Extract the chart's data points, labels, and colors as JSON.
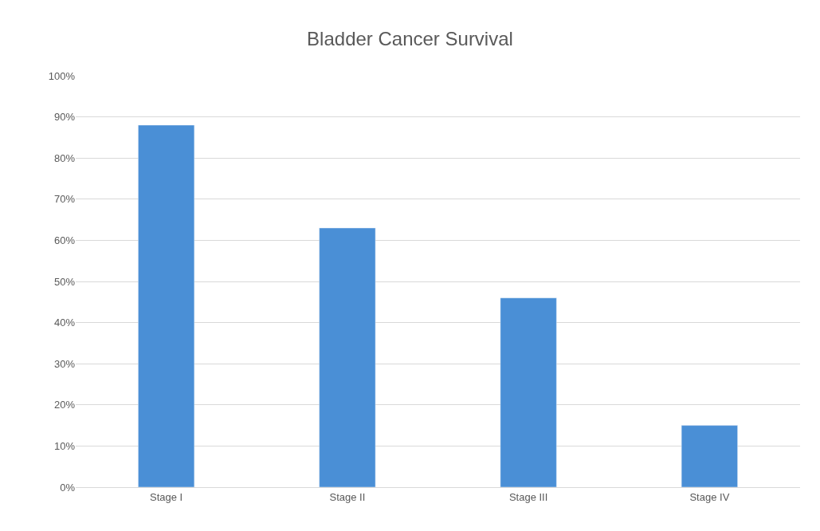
{
  "chart_data": {
    "type": "bar",
    "title": "Bladder Cancer Survival",
    "categories": [
      "Stage I",
      "Stage II",
      "Stage III",
      "Stage IV"
    ],
    "values": [
      88,
      63,
      46,
      15
    ],
    "color": "#4a8fd6",
    "ylim": [
      0,
      100
    ],
    "yticks": [
      {
        "value": 0,
        "label": "0%"
      },
      {
        "value": 10,
        "label": "10%"
      },
      {
        "value": 20,
        "label": "20%"
      },
      {
        "value": 30,
        "label": "30%"
      },
      {
        "value": 40,
        "label": "40%"
      },
      {
        "value": 50,
        "label": "50%"
      },
      {
        "value": 60,
        "label": "60%"
      },
      {
        "value": 70,
        "label": "70%"
      },
      {
        "value": 80,
        "label": "80%"
      },
      {
        "value": 90,
        "label": "90%"
      },
      {
        "value": 100,
        "label": "100%"
      }
    ],
    "grid": "y",
    "legend": false
  }
}
